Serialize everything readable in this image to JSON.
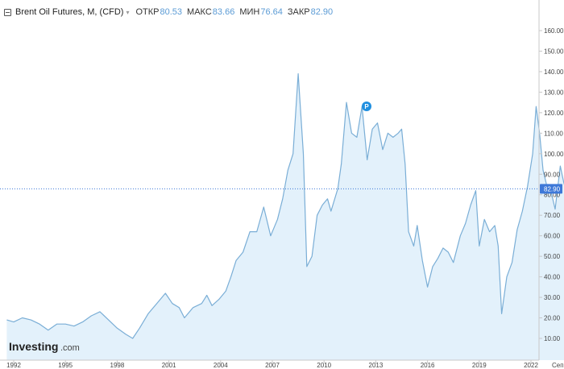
{
  "header": {
    "title": "Brent Oil Futures, M, (CFD)",
    "caret": "▾",
    "ohlc": [
      {
        "label": "ОТКР",
        "value": "80.53"
      },
      {
        "label": "МАКС",
        "value": "83.66"
      },
      {
        "label": "МИН",
        "value": "76.64"
      },
      {
        "label": "ЗАКР",
        "value": "82.90"
      }
    ]
  },
  "logo": {
    "name": "Investing",
    "suffix": ".com"
  },
  "marker": {
    "label": "P"
  },
  "colors": {
    "line": "#7aaed6",
    "fill": "#e3f1fb",
    "price_tag": "#3d78d8",
    "accent": "#5b9bd5"
  },
  "chart_data": {
    "type": "area",
    "title": "Brent Oil Futures, M, (CFD)",
    "xlabel": "",
    "ylabel": "",
    "xlim": [
      1991.5,
      2024.1
    ],
    "ylim": [
      3.5,
      165
    ],
    "yticks": [
      10,
      20,
      30,
      40,
      50,
      60,
      70,
      80,
      90,
      100,
      110,
      120,
      130,
      140,
      150,
      160
    ],
    "ytick_labels": [
      "10.00",
      "20.00",
      "30.00",
      "40.00",
      "50.00",
      "60.00",
      "70.00",
      "80.00",
      "90.00",
      "100.00",
      "110.00",
      "120.00",
      "130.00",
      "140.00",
      "150.00",
      "160.00"
    ],
    "xticks": [
      1992,
      1995,
      1998,
      2001,
      2004,
      2007,
      2010,
      2013,
      2016,
      2019,
      2022
    ],
    "xtick_labels": [
      "1992",
      "1995",
      "1998",
      "2001",
      "2004",
      "2007",
      "2010",
      "2013",
      "2016",
      "2019",
      "2022"
    ],
    "x_edge_label": "Сеп",
    "current_price": {
      "value": 82.9,
      "label": "82.90"
    },
    "axis_position": "right",
    "grid": false,
    "series": [
      {
        "points": [
          [
            1991.6,
            19
          ],
          [
            1992.0,
            18
          ],
          [
            1992.5,
            20
          ],
          [
            1993.0,
            19
          ],
          [
            1993.5,
            17
          ],
          [
            1994.0,
            14
          ],
          [
            1994.5,
            17
          ],
          [
            1995.0,
            17
          ],
          [
            1995.5,
            16
          ],
          [
            1996.0,
            18
          ],
          [
            1996.5,
            21
          ],
          [
            1997.0,
            23
          ],
          [
            1997.5,
            19
          ],
          [
            1998.0,
            15
          ],
          [
            1998.5,
            12
          ],
          [
            1998.9,
            10
          ],
          [
            1999.3,
            15
          ],
          [
            1999.8,
            22
          ],
          [
            2000.3,
            27
          ],
          [
            2000.8,
            32
          ],
          [
            2001.2,
            27
          ],
          [
            2001.6,
            25
          ],
          [
            2001.9,
            20
          ],
          [
            2002.4,
            25
          ],
          [
            2002.9,
            27
          ],
          [
            2003.2,
            31
          ],
          [
            2003.5,
            26
          ],
          [
            2003.9,
            29
          ],
          [
            2004.3,
            33
          ],
          [
            2004.6,
            40
          ],
          [
            2004.9,
            48
          ],
          [
            2005.3,
            52
          ],
          [
            2005.7,
            62
          ],
          [
            2006.1,
            62
          ],
          [
            2006.5,
            74
          ],
          [
            2006.9,
            60
          ],
          [
            2007.3,
            68
          ],
          [
            2007.6,
            78
          ],
          [
            2007.9,
            92
          ],
          [
            2008.2,
            100
          ],
          [
            2008.5,
            139
          ],
          [
            2008.8,
            100
          ],
          [
            2009.0,
            45
          ],
          [
            2009.3,
            50
          ],
          [
            2009.6,
            70
          ],
          [
            2009.9,
            75
          ],
          [
            2010.2,
            78
          ],
          [
            2010.4,
            72
          ],
          [
            2010.8,
            83
          ],
          [
            2011.0,
            95
          ],
          [
            2011.3,
            125
          ],
          [
            2011.6,
            110
          ],
          [
            2011.9,
            108
          ],
          [
            2012.2,
            123
          ],
          [
            2012.5,
            97
          ],
          [
            2012.8,
            112
          ],
          [
            2013.1,
            115
          ],
          [
            2013.4,
            102
          ],
          [
            2013.7,
            110
          ],
          [
            2014.0,
            108
          ],
          [
            2014.3,
            110
          ],
          [
            2014.5,
            112
          ],
          [
            2014.7,
            95
          ],
          [
            2014.9,
            62
          ],
          [
            2015.2,
            55
          ],
          [
            2015.4,
            65
          ],
          [
            2015.7,
            48
          ],
          [
            2016.0,
            35
          ],
          [
            2016.3,
            45
          ],
          [
            2016.6,
            49
          ],
          [
            2016.9,
            54
          ],
          [
            2017.2,
            52
          ],
          [
            2017.5,
            47
          ],
          [
            2017.9,
            60
          ],
          [
            2018.2,
            66
          ],
          [
            2018.5,
            75
          ],
          [
            2018.8,
            82
          ],
          [
            2019.0,
            55
          ],
          [
            2019.3,
            68
          ],
          [
            2019.6,
            62
          ],
          [
            2019.9,
            65
          ],
          [
            2020.1,
            55
          ],
          [
            2020.3,
            22
          ],
          [
            2020.6,
            40
          ],
          [
            2020.9,
            47
          ],
          [
            2021.2,
            63
          ],
          [
            2021.5,
            72
          ],
          [
            2021.8,
            84
          ],
          [
            2022.1,
            100
          ],
          [
            2022.3,
            123
          ],
          [
            2022.5,
            110
          ],
          [
            2022.7,
            92
          ],
          [
            2022.9,
            85
          ],
          [
            2023.1,
            84
          ],
          [
            2023.4,
            73
          ],
          [
            2023.7,
            94
          ],
          [
            2023.9,
            86
          ],
          [
            2024.0,
            82.9
          ]
        ]
      }
    ]
  }
}
